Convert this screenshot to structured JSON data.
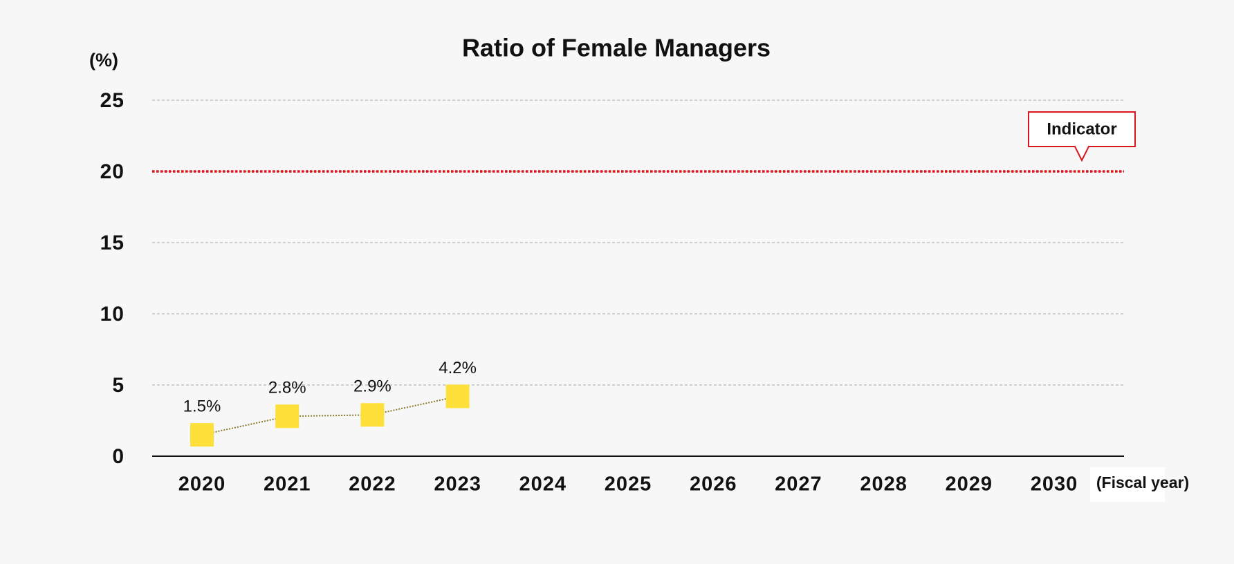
{
  "chart_data": {
    "type": "line",
    "title": "Ratio of Female Managers",
    "y_axis_label": "(%)",
    "x_axis_label": "(Fiscal year)",
    "categories": [
      "2020",
      "2021",
      "2022",
      "2023",
      "2024",
      "2025",
      "2026",
      "2027",
      "2028",
      "2029",
      "2030"
    ],
    "series": [
      {
        "name": "Ratio of Female Managers",
        "color": "#fde03a",
        "line_color": "#8a7a2a",
        "values": [
          1.5,
          2.8,
          2.9,
          4.2,
          null,
          null,
          null,
          null,
          null,
          null,
          null
        ],
        "value_labels": [
          "1.5%",
          "2.8%",
          "2.9%",
          "4.2%",
          null,
          null,
          null,
          null,
          null,
          null,
          null
        ]
      }
    ],
    "indicator": {
      "value": 20,
      "label": "Indicator",
      "color": "#d9161d"
    },
    "ylim": [
      0,
      25
    ],
    "yticks": [
      0,
      5,
      10,
      15,
      20,
      25
    ],
    "grid": true
  }
}
